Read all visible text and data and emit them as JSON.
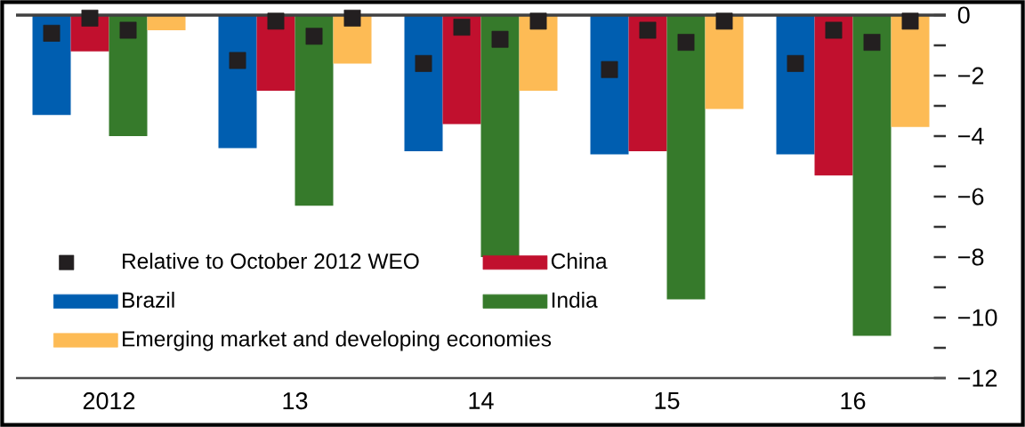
{
  "chart_data": {
    "type": "bar",
    "categories": [
      "2012",
      "13",
      "14",
      "15",
      "16"
    ],
    "series": [
      {
        "name": "Brazil",
        "color": "#005eb0",
        "values": [
          -3.3,
          -4.4,
          -4.5,
          -4.6,
          -4.6
        ]
      },
      {
        "name": "China",
        "color": "#c1102e",
        "values": [
          -1.2,
          -2.5,
          -3.6,
          -4.5,
          -5.3
        ]
      },
      {
        "name": "India",
        "color": "#367a2b",
        "values": [
          -4.0,
          -6.3,
          -8.0,
          -9.4,
          -10.6
        ]
      },
      {
        "name": "Emerging market and developing economies",
        "color": "#fdbb55",
        "values": [
          -0.5,
          -1.6,
          -2.5,
          -3.1,
          -3.7
        ]
      },
      {
        "name": "Relative to October 2012 WEO",
        "type": "scatter",
        "marker": "square",
        "color": "#231f20",
        "values": [
          -0.6,
          -1.5,
          -1.6,
          -1.8,
          -1.6
        ]
      },
      {
        "type": "scatter",
        "marker": "square",
        "color": "#231f20",
        "values": [
          -0.1,
          -0.2,
          -0.4,
          -0.5,
          -0.5
        ]
      },
      {
        "type": "scatter",
        "marker": "square",
        "color": "#231f20",
        "values": [
          -0.5,
          -0.7,
          -0.8,
          -0.9,
          -0.9
        ]
      },
      {
        "type": "scatter",
        "marker": "square",
        "color": "#231f20",
        "values": [
          null,
          -0.1,
          -0.2,
          -0.2,
          -0.2
        ]
      }
    ],
    "ylim": [
      -12,
      0
    ],
    "yticks": [
      {
        "value": -12,
        "label": "−12"
      },
      {
        "value": -11,
        "label": null
      },
      {
        "value": -10,
        "label": "−10"
      },
      {
        "value": -9,
        "label": null
      },
      {
        "value": -8,
        "label": "−8"
      },
      {
        "value": -7,
        "label": null
      },
      {
        "value": -6,
        "label": "−6"
      },
      {
        "value": -5,
        "label": null
      },
      {
        "value": -4,
        "label": "−4"
      },
      {
        "value": -3,
        "label": null
      },
      {
        "value": -2,
        "label": "−2"
      },
      {
        "value": -1,
        "label": null
      },
      {
        "value": 0,
        "label": "0"
      }
    ],
    "ref_lines": [
      {
        "axis": "y",
        "value": 0,
        "color": "#404040"
      }
    ],
    "legend": "bottom left",
    "grid": false
  }
}
